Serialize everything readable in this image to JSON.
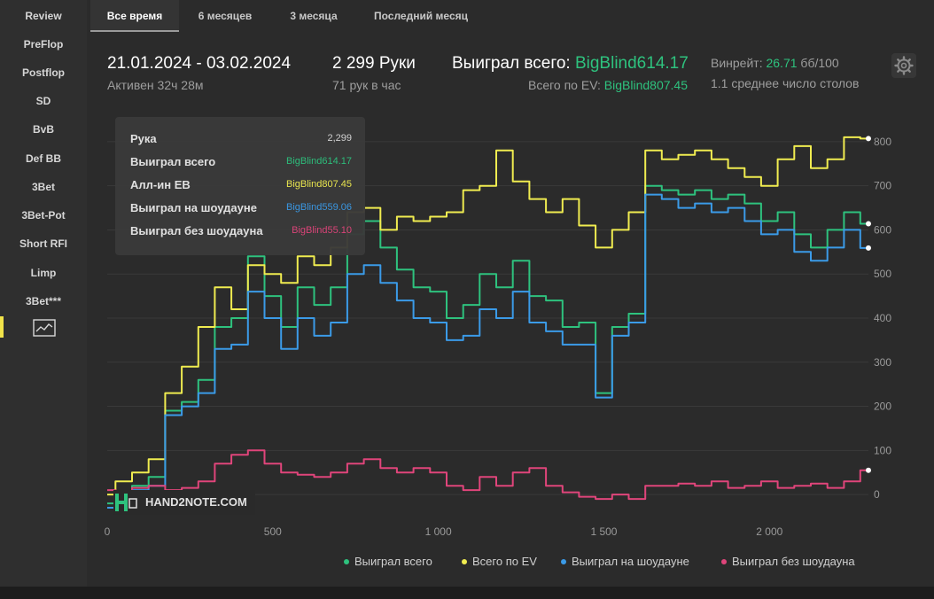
{
  "sidebar": {
    "items": [
      {
        "label": "Review"
      },
      {
        "label": "PreFlop"
      },
      {
        "label": "Postflop"
      },
      {
        "label": "SD"
      },
      {
        "label": "BvB"
      },
      {
        "label": "Def BB"
      },
      {
        "label": "3Bet"
      },
      {
        "label": "3Bet-Pot"
      },
      {
        "label": "Short RFI"
      },
      {
        "label": "Limp"
      },
      {
        "label": "3Bet***"
      }
    ],
    "active_icon": "line-chart-icon"
  },
  "tabs": [
    {
      "label": "Все время",
      "active": true
    },
    {
      "label": "6 месяцев"
    },
    {
      "label": "3 месяца"
    },
    {
      "label": "Последний месяц"
    }
  ],
  "header": {
    "date_range": "21.01.2024 - 03.02.2024",
    "active_time": "Активен 32ч 28м",
    "hands": "2 299 Руки",
    "hands_per_hour": "71 рук в час",
    "won_total_label": "Выиграл всего:",
    "won_total_value": "BigBlind614.17",
    "ev_label": "Всего по EV:",
    "ev_value": "BigBlind807.45",
    "winrate_label": "Винрейт:",
    "winrate_value": "26.71",
    "winrate_unit": "бб/100",
    "avg_tables": "1.1 среднее число столов",
    "settings_icon": "gear-icon"
  },
  "tooltip": {
    "rows": [
      {
        "label": "Рука",
        "value": "2,299",
        "color": "#d8d8d8"
      },
      {
        "label": "Выиграл всего",
        "value": "BigBlind614.17",
        "color": "#2ec27e"
      },
      {
        "label": "Алл-ин EB",
        "value": "BigBlind807.45",
        "color": "#f0ec50"
      },
      {
        "label": "Выиграл на шоудауне",
        "value": "BigBlind559.06",
        "color": "#3b9be8"
      },
      {
        "label": "Выиграл без шоудауна",
        "value": "BigBlind55.10",
        "color": "#e0457b"
      }
    ]
  },
  "watermark": "HAND2NOTE.COM",
  "chart_data": {
    "type": "line",
    "xlim": [
      0,
      2299
    ],
    "ylim": [
      -50,
      850
    ],
    "x_ticks": [
      {
        "value": 0,
        "label": "0"
      },
      {
        "value": 500,
        "label": "500"
      },
      {
        "value": 1000,
        "label": "1 000"
      },
      {
        "value": 1500,
        "label": "1 500"
      },
      {
        "value": 2000,
        "label": "2 000"
      }
    ],
    "y_ticks": [
      0,
      100,
      200,
      300,
      400,
      500,
      600,
      700,
      800
    ],
    "grid": true,
    "legend": "bottom-right",
    "series": [
      {
        "name": "Выиграл всего",
        "color": "#2ec27e",
        "x": [
          0,
          50,
          100,
          150,
          200,
          250,
          300,
          350,
          400,
          450,
          500,
          550,
          600,
          650,
          700,
          750,
          800,
          850,
          900,
          950,
          1000,
          1050,
          1100,
          1150,
          1200,
          1250,
          1300,
          1350,
          1400,
          1450,
          1500,
          1550,
          1600,
          1650,
          1700,
          1750,
          1800,
          1850,
          1900,
          1950,
          2000,
          2050,
          2100,
          2150,
          2200,
          2250,
          2299
        ],
        "y": [
          -20,
          -10,
          20,
          40,
          190,
          210,
          260,
          380,
          400,
          540,
          450,
          380,
          470,
          430,
          470,
          590,
          620,
          560,
          510,
          470,
          460,
          400,
          430,
          500,
          470,
          530,
          450,
          440,
          380,
          390,
          230,
          380,
          410,
          700,
          690,
          680,
          690,
          670,
          680,
          660,
          620,
          640,
          590,
          560,
          600,
          640,
          614
        ]
      },
      {
        "name": "Всего по EV",
        "color": "#f0ec50",
        "x": [
          0,
          50,
          100,
          150,
          200,
          250,
          300,
          350,
          400,
          450,
          500,
          550,
          600,
          650,
          700,
          750,
          800,
          850,
          900,
          950,
          1000,
          1050,
          1100,
          1150,
          1200,
          1250,
          1300,
          1350,
          1400,
          1450,
          1500,
          1550,
          1600,
          1650,
          1700,
          1750,
          1800,
          1850,
          1900,
          1950,
          2000,
          2050,
          2100,
          2150,
          2200,
          2250,
          2299
        ],
        "y": [
          0,
          30,
          50,
          80,
          230,
          290,
          380,
          470,
          420,
          520,
          500,
          480,
          540,
          520,
          560,
          640,
          650,
          600,
          630,
          620,
          630,
          640,
          690,
          700,
          780,
          710,
          670,
          640,
          670,
          610,
          560,
          600,
          640,
          780,
          760,
          770,
          780,
          760,
          740,
          720,
          700,
          760,
          790,
          740,
          760,
          810,
          807
        ]
      },
      {
        "name": "Выиграл на шоудауне",
        "color": "#3b9be8",
        "x": [
          0,
          50,
          100,
          150,
          200,
          250,
          300,
          350,
          400,
          450,
          500,
          550,
          600,
          650,
          700,
          750,
          800,
          850,
          900,
          950,
          1000,
          1050,
          1100,
          1150,
          1200,
          1250,
          1300,
          1350,
          1400,
          1450,
          1500,
          1550,
          1600,
          1650,
          1700,
          1750,
          1800,
          1850,
          1900,
          1950,
          2000,
          2050,
          2100,
          2150,
          2200,
          2250,
          2299
        ],
        "y": [
          -30,
          -20,
          10,
          20,
          180,
          200,
          230,
          330,
          340,
          460,
          400,
          330,
          400,
          360,
          390,
          500,
          520,
          480,
          440,
          400,
          390,
          350,
          360,
          420,
          400,
          460,
          390,
          370,
          340,
          340,
          220,
          360,
          390,
          680,
          670,
          650,
          660,
          640,
          650,
          620,
          590,
          600,
          550,
          530,
          560,
          600,
          559
        ]
      },
      {
        "name": "Выиграл без шоудауна",
        "color": "#e0457b",
        "x": [
          0,
          50,
          100,
          150,
          200,
          250,
          300,
          350,
          400,
          450,
          500,
          550,
          600,
          650,
          700,
          750,
          800,
          850,
          900,
          950,
          1000,
          1050,
          1100,
          1150,
          1200,
          1250,
          1300,
          1350,
          1400,
          1450,
          1500,
          1550,
          1600,
          1650,
          1700,
          1750,
          1800,
          1850,
          1900,
          1950,
          2000,
          2050,
          2100,
          2150,
          2200,
          2250,
          2299
        ],
        "y": [
          10,
          5,
          15,
          20,
          10,
          15,
          30,
          70,
          90,
          100,
          70,
          50,
          45,
          40,
          50,
          70,
          80,
          60,
          50,
          60,
          50,
          20,
          10,
          40,
          20,
          50,
          60,
          20,
          5,
          -5,
          -10,
          0,
          -10,
          20,
          20,
          25,
          20,
          30,
          15,
          20,
          30,
          15,
          20,
          25,
          15,
          30,
          55
        ]
      }
    ]
  }
}
